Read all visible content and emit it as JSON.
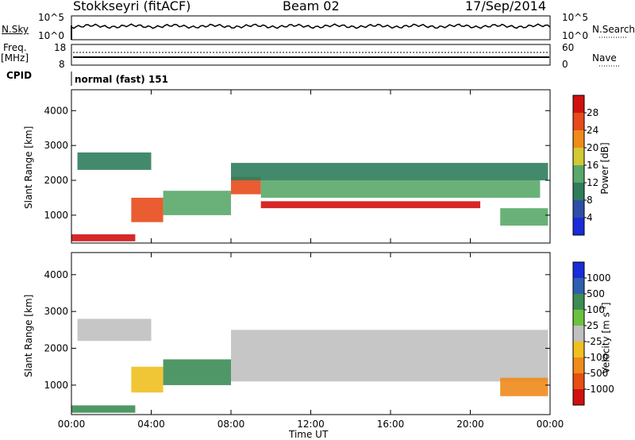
{
  "header": {
    "radar": "Stokkseyri (fitACF)",
    "beam": "Beam 02",
    "date": "17/Sep/2014"
  },
  "nsky_panel": {
    "left_label": "N.Sky",
    "left_ticks": [
      "10^5",
      "10^0"
    ],
    "right_ticks": [
      "10^5",
      "10^0"
    ],
    "right_label": "N.Search"
  },
  "freq_panel": {
    "left_label": "Freq.",
    "left_unit": "[MHz]",
    "left_ticks": [
      "18",
      "8"
    ],
    "right_ticks": [
      "60",
      "0"
    ],
    "right_label": "Nave"
  },
  "cpid_panel": {
    "label": "CPID",
    "value": "normal (fast) 151"
  },
  "time_axis": {
    "ticks": [
      "00:00",
      "04:00",
      "08:00",
      "12:00",
      "16:00",
      "20:00",
      "00:00"
    ],
    "label": "Time UT"
  },
  "colors": {
    "power_scale": [
      "#1a2bd9",
      "#2e4fa8",
      "#2f7d5c",
      "#5aa86a",
      "#d4c834",
      "#f08a1c",
      "#e84a1c",
      "#d21010"
    ],
    "velocity_scale": [
      "#1a2bd9",
      "#2e5fb0",
      "#3d8c56",
      "#6cc23e",
      "#c0c0c0",
      "#f0c020",
      "#f08a1c",
      "#e65010",
      "#d21010"
    ]
  },
  "chart_data": [
    {
      "type": "heatmap",
      "title": "",
      "xlabel": "Time UT",
      "ylabel": "Slant Range [km]",
      "x_ticks": [
        "00:00",
        "04:00",
        "08:00",
        "12:00",
        "16:00",
        "20:00",
        "00:00"
      ],
      "y_ticks": [
        1000,
        2000,
        3000,
        4000
      ],
      "ylim": [
        200,
        4600
      ],
      "colorbar": {
        "label": "Power [dB]",
        "ticks": [
          4,
          8,
          12,
          16,
          20,
          24,
          28
        ],
        "range": [
          0,
          32
        ]
      },
      "bands": [
        {
          "t0": 0.0,
          "t1": 3.2,
          "r0": 250,
          "r1": 450,
          "value": 28
        },
        {
          "t0": 3.0,
          "t1": 4.6,
          "r0": 800,
          "r1": 1500,
          "value": 26
        },
        {
          "t0": 4.6,
          "t1": 8.0,
          "r0": 1000,
          "r1": 1700,
          "value": 14
        },
        {
          "t0": 8.0,
          "t1": 9.5,
          "r0": 1600,
          "r1": 2100,
          "value": 24
        },
        {
          "t0": 9.5,
          "t1": 20.5,
          "r0": 1200,
          "r1": 1400,
          "value": 28
        },
        {
          "t0": 9.5,
          "t1": 23.5,
          "r0": 1500,
          "r1": 2000,
          "value": 14
        },
        {
          "t0": 0.3,
          "t1": 4.0,
          "r0": 2300,
          "r1": 2800,
          "value": 10
        },
        {
          "t0": 8.0,
          "t1": 23.9,
          "r0": 2000,
          "r1": 2500,
          "value": 8
        },
        {
          "t0": 21.5,
          "t1": 23.9,
          "r0": 700,
          "r1": 1200,
          "value": 12
        }
      ]
    },
    {
      "type": "heatmap",
      "title": "",
      "xlabel": "Time UT",
      "ylabel": "Slant Range [km]",
      "x_ticks": [
        "00:00",
        "04:00",
        "08:00",
        "12:00",
        "16:00",
        "20:00",
        "00:00"
      ],
      "y_ticks": [
        1000,
        2000,
        3000,
        4000
      ],
      "ylim": [
        200,
        4600
      ],
      "colorbar": {
        "label": "Velocity [m s^-1]",
        "ticks": [
          1000,
          500,
          100,
          25,
          -25,
          -100,
          -500,
          -1000
        ]
      },
      "bands": [
        {
          "t0": 0.0,
          "t1": 3.2,
          "r0": 250,
          "r1": 450,
          "value": 100
        },
        {
          "t0": 3.0,
          "t1": 4.6,
          "r0": 800,
          "r1": 1500,
          "value": -100
        },
        {
          "t0": 4.6,
          "t1": 8.0,
          "r0": 1000,
          "r1": 1700,
          "value": 100
        },
        {
          "t0": 0.3,
          "t1": 4.0,
          "r0": 2200,
          "r1": 2800,
          "value": 0
        },
        {
          "t0": 8.0,
          "t1": 23.9,
          "r0": 1100,
          "r1": 2500,
          "value": 0
        },
        {
          "t0": 21.5,
          "t1": 23.9,
          "r0": 700,
          "r1": 1200,
          "value": -500
        }
      ]
    }
  ]
}
